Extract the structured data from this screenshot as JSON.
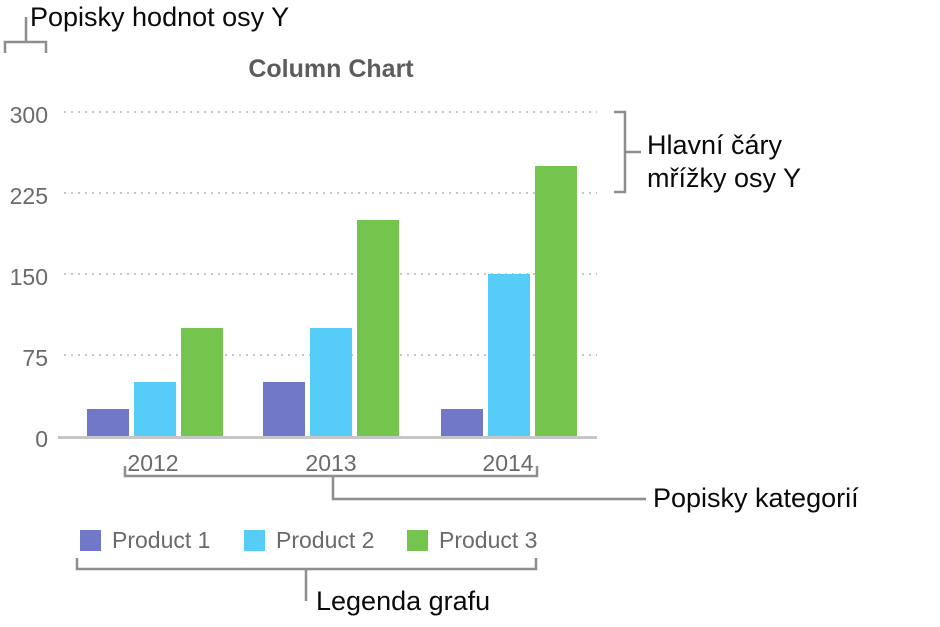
{
  "annotations": {
    "y_value_labels": "Popisky hodnot osy Y",
    "y_gridlines": "Hlavní čáry mřížky osy Y",
    "category_labels": "Popisky kategorií",
    "chart_legend": "Legenda grafu"
  },
  "chart_data": {
    "type": "bar",
    "title": "Column Chart",
    "categories": [
      "2012",
      "2013",
      "2014"
    ],
    "series": [
      {
        "name": "Product 1",
        "color": "#7178c7",
        "values": [
          25,
          50,
          25
        ]
      },
      {
        "name": "Product 2",
        "color": "#55cdf8",
        "values": [
          50,
          100,
          150
        ]
      },
      {
        "name": "Product 3",
        "color": "#74c44e",
        "values": [
          100,
          200,
          250
        ]
      }
    ],
    "xlabel": "",
    "ylabel": "",
    "y_ticks": [
      0,
      75,
      150,
      225,
      300
    ],
    "ylim": [
      0,
      300
    ],
    "grid": "horizontal-dotted",
    "legend_position": "bottom"
  },
  "colors": {
    "axis_text": "#6a6a6a",
    "title_text": "#5c5c5c",
    "gridline": "#c7c7c7",
    "axis_line": "#c6c6c6",
    "callout_line": "#8e8e8e",
    "annotation_text": "#0a0a0a"
  }
}
